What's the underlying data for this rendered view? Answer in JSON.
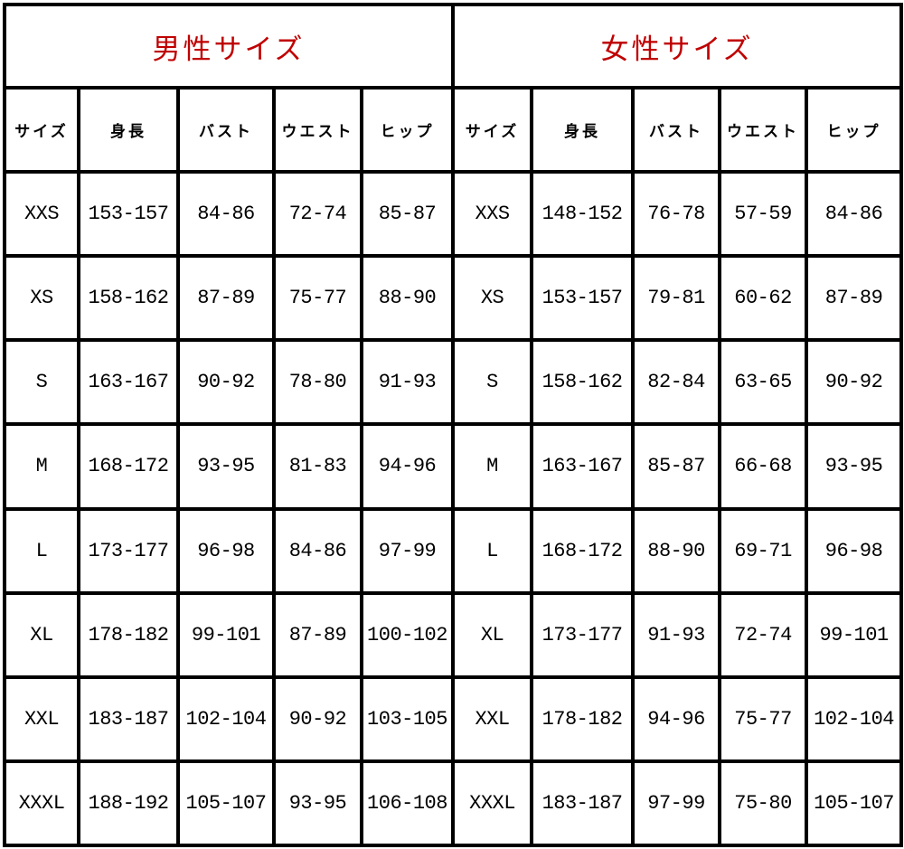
{
  "male": {
    "title": "男性サイズ",
    "headers": [
      "サイズ",
      "身長",
      "バスト",
      "ウエスト",
      "ヒップ"
    ],
    "rows": [
      [
        "XXS",
        "153-157",
        "84-86",
        "72-74",
        "85-87"
      ],
      [
        "XS",
        "158-162",
        "87-89",
        "75-77",
        "88-90"
      ],
      [
        "S",
        "163-167",
        "90-92",
        "78-80",
        "91-93"
      ],
      [
        "M",
        "168-172",
        "93-95",
        "81-83",
        "94-96"
      ],
      [
        "L",
        "173-177",
        "96-98",
        "84-86",
        "97-99"
      ],
      [
        "XL",
        "178-182",
        "99-101",
        "87-89",
        "100-102"
      ],
      [
        "XXL",
        "183-187",
        "102-104",
        "90-92",
        "103-105"
      ],
      [
        "XXXL",
        "188-192",
        "105-107",
        "93-95",
        "106-108"
      ]
    ]
  },
  "female": {
    "title": "女性サイズ",
    "headers": [
      "サイズ",
      "身長",
      "バスト",
      "ウエスト",
      "ヒップ"
    ],
    "rows": [
      [
        "XXS",
        "148-152",
        "76-78",
        "57-59",
        "84-86"
      ],
      [
        "XS",
        "153-157",
        "79-81",
        "60-62",
        "87-89"
      ],
      [
        "S",
        "158-162",
        "82-84",
        "63-65",
        "90-92"
      ],
      [
        "M",
        "163-167",
        "85-87",
        "66-68",
        "93-95"
      ],
      [
        "L",
        "168-172",
        "88-90",
        "69-71",
        "96-98"
      ],
      [
        "XL",
        "173-177",
        "91-93",
        "72-74",
        "99-101"
      ],
      [
        "XXL",
        "178-182",
        "94-96",
        "75-77",
        "102-104"
      ],
      [
        "XXXL",
        "183-187",
        "97-99",
        "75-80",
        "105-107"
      ]
    ]
  },
  "colors": {
    "title": "#c00000",
    "border": "#000000"
  }
}
